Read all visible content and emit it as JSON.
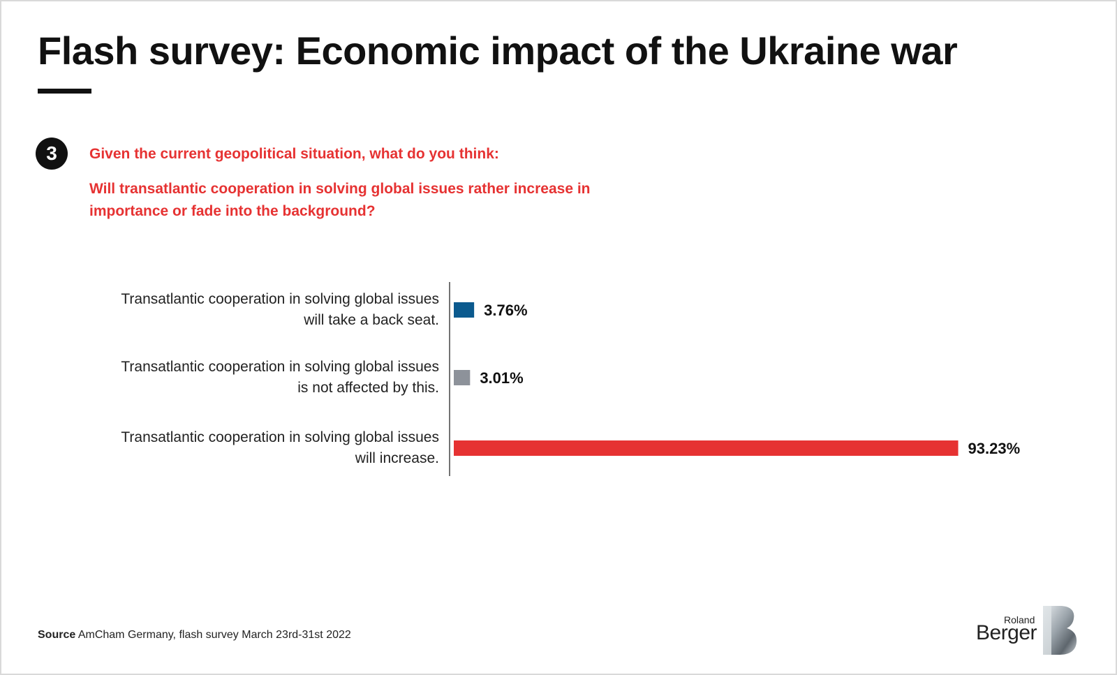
{
  "header": {
    "title": "Flash survey: Economic impact of the Ukraine war"
  },
  "question": {
    "number": "3",
    "line1": "Given the current geopolitical situation, what do you think:",
    "line2": "Will transatlantic cooperation in solving global issues rather increase in importance or fade into the background?"
  },
  "chart_data": {
    "type": "bar",
    "orientation": "horizontal",
    "title": "",
    "xlabel": "",
    "ylabel": "",
    "xlim": [
      0,
      100
    ],
    "grid": false,
    "legend": "none",
    "categories": [
      [
        "Transatlantic cooperation in solving global issues",
        "will take a back seat."
      ],
      [
        "Transatlantic cooperation in solving global issues",
        "is not affected by this."
      ],
      [
        "Transatlantic cooperation in solving global issues",
        "will increase."
      ]
    ],
    "values": [
      3.76,
      3.01,
      93.23
    ],
    "value_labels": [
      "3.76%",
      "3.01%",
      "93.23%"
    ],
    "colors": [
      "#0b5a8e",
      "#8d929a",
      "#e63232"
    ]
  },
  "source": {
    "label": "Source",
    "text": "AmCham Germany, flash survey March 23rd-31st 2022"
  },
  "logo": {
    "line1": "Roland",
    "line2": "Berger",
    "mark": "roland-berger-b-logo"
  }
}
